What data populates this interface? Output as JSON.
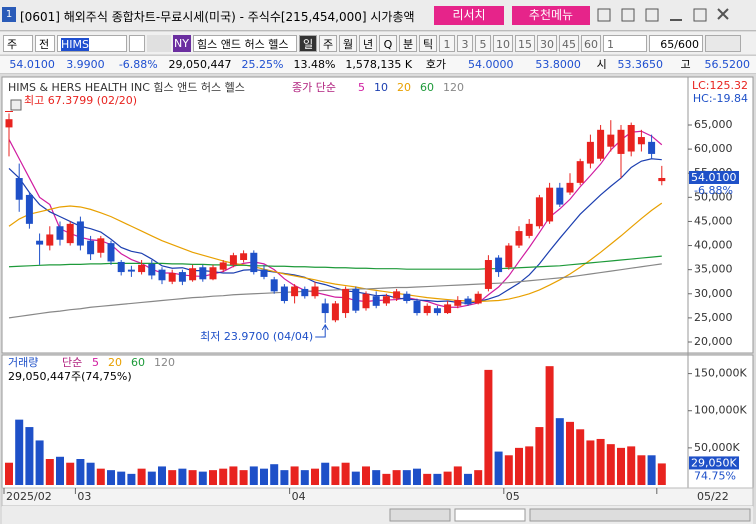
{
  "window": {
    "id": "1",
    "title": "[0601] 해외주식 종합차트-무료시세(미국) - 주식수[215,454,000] 시가총액",
    "buttons": [
      "리서치",
      "추천메뉴"
    ]
  },
  "toolbar": {
    "market": "주",
    "scope": "전",
    "code": "HIMS",
    "exchange": "NY",
    "name": "힘스 앤드 허스 헬스",
    "periods": [
      "일",
      "주",
      "월",
      "년",
      "Q",
      "분",
      "틱"
    ],
    "minutes": [
      "1",
      "3",
      "5",
      "10",
      "15",
      "30",
      "45",
      "60"
    ],
    "unit": "1",
    "count": "65/600"
  },
  "quote": [
    {
      "text": "54.0100",
      "color": "#1f4fd0"
    },
    {
      "text": "3.9900",
      "color": "#1f4fd0"
    },
    {
      "text": "-6.88%",
      "color": "#1f4fd0"
    },
    {
      "text": "29,050,447",
      "color": "#000"
    },
    {
      "text": "25.25%",
      "color": "#1f4fd0"
    },
    {
      "text": "13.48%",
      "color": "#000"
    },
    {
      "text": "1,578,135 K",
      "color": "#000"
    },
    {
      "text": "호가",
      "color": "#000"
    },
    {
      "text": "54.0000",
      "color": "#1f4fd0"
    },
    {
      "text": "53.8000",
      "color": "#1f4fd0"
    },
    {
      "text": "시",
      "color": "#000"
    },
    {
      "text": "53.3650",
      "color": "#1f4fd0"
    },
    {
      "text": "고",
      "color": "#000"
    },
    {
      "text": "56.5200",
      "color": "#1f4fd0"
    }
  ],
  "chart_data": [
    {
      "type": "candlestick",
      "title": "HIMS & HERS HEALTH INC  힘스 앤드 허스 헬스",
      "legend_title": "종가 단순",
      "up_color": "#e8231f",
      "down_color": "#1e50c8",
      "high_label": "최고 67.3799 (02/20)",
      "high_index": 0,
      "low_label": "최저 23.9700 (04/04)",
      "low_index": 31,
      "lc_label": "LC:125.32",
      "hc_label": "HC:-19.84",
      "last_label": "54.0100",
      "last_change": "-6.88%",
      "ylim": [
        18.34,
        74.33
      ],
      "yticks": [
        {
          "value": 20,
          "label": "20,000"
        },
        {
          "value": 25,
          "label": "25,000"
        },
        {
          "value": 30,
          "label": "30,000"
        },
        {
          "value": 35,
          "label": "35,000"
        },
        {
          "value": 40,
          "label": "40,000"
        },
        {
          "value": 45,
          "label": "45,000"
        },
        {
          "value": 50,
          "label": "50,000"
        },
        {
          "value": 55,
          "label": "55,000"
        },
        {
          "value": 60,
          "label": "60,000"
        },
        {
          "value": 65,
          "label": "65,000"
        }
      ],
      "open": [
        64.5,
        54,
        50.5,
        41,
        40,
        44,
        40.5,
        45,
        41,
        38.5,
        40.5,
        36.6,
        35,
        34.5,
        36.2,
        35,
        32.5,
        34.5,
        32.8,
        35.5,
        33,
        35,
        36,
        37,
        38.5,
        35,
        33,
        31.5,
        29.5,
        31,
        29.5,
        28,
        24.5,
        26,
        31,
        27,
        29.5,
        28,
        29,
        30,
        28.5,
        26,
        27,
        26,
        27.5,
        29,
        28,
        31,
        37.5,
        35.5,
        40,
        42,
        44,
        45,
        52,
        51,
        53,
        57,
        58,
        60.5,
        59,
        59.5,
        61,
        61.5,
        53.365
      ],
      "high": [
        67.3799,
        57,
        51,
        42.5,
        44,
        45,
        45,
        46,
        42,
        42,
        41,
        37,
        35.8,
        37,
        37,
        35.5,
        35,
        35,
        36,
        36,
        36,
        37,
        38.5,
        39,
        39,
        36,
        33.5,
        32,
        32,
        31.5,
        32.5,
        29,
        28.5,
        31.5,
        31.5,
        30.5,
        30.5,
        30,
        31,
        30.5,
        29,
        28,
        27.5,
        28.5,
        29.5,
        29.5,
        30.5,
        38,
        38,
        40.5,
        44,
        45.5,
        50.5,
        53,
        53,
        55,
        58,
        63,
        65,
        66,
        65,
        65.5,
        64,
        63,
        56.52
      ],
      "low": [
        58.5,
        47,
        43.5,
        36,
        39,
        40,
        40,
        39,
        37,
        37.5,
        36,
        33.8,
        33.5,
        34,
        33,
        32,
        32,
        31.8,
        32.5,
        32.5,
        32.8,
        34.5,
        35.5,
        36.5,
        34,
        33,
        30,
        28,
        28,
        29,
        29,
        23.97,
        24.1,
        25,
        26,
        26.5,
        27,
        27.5,
        28.5,
        28,
        25.5,
        25.5,
        25.5,
        25.8,
        27,
        27.5,
        27.8,
        30.5,
        33.5,
        35,
        39.5,
        41.5,
        43.5,
        44.5,
        48,
        50.5,
        52.5,
        56,
        57.5,
        59.5,
        54,
        58.5,
        59.5,
        58,
        52.5
      ],
      "close": [
        66.2,
        49.5,
        44.5,
        40.2,
        42.3,
        41.2,
        44.5,
        40,
        38.2,
        41.5,
        36.7,
        34.5,
        34.6,
        36,
        33.8,
        32.8,
        34.3,
        32.5,
        35.3,
        33,
        35.5,
        36.5,
        38,
        38.4,
        34.5,
        33.5,
        30.5,
        28.5,
        31.5,
        29.5,
        31.5,
        26,
        28,
        31,
        26.5,
        30,
        27.5,
        29.5,
        30.5,
        28.5,
        26,
        27.5,
        26,
        27.8,
        28.7,
        27.8,
        30,
        37,
        34.5,
        40,
        43,
        44.5,
        50,
        52,
        48.5,
        53,
        57.5,
        61.5,
        64,
        63,
        64,
        65,
        62.5,
        59,
        54.01
      ],
      "series": [
        {
          "name": "5",
          "color": "#d01ca0",
          "values": [
            62,
            58,
            54,
            50,
            48.5,
            43.5,
            42.5,
            41.7,
            41.2,
            41,
            40.2,
            38.3,
            37.1,
            36.3,
            35.1,
            34.3,
            34.3,
            33.9,
            33.7,
            33.6,
            34.1,
            34.6,
            35.7,
            36.3,
            36.6,
            36.2,
            35,
            33.1,
            31.7,
            30.7,
            30.3,
            29.8,
            29.3,
            29.2,
            28.6,
            28.4,
            28.6,
            28.7,
            28.8,
            29.2,
            28.8,
            28.4,
            27.7,
            27.2,
            27.2,
            27.6,
            28.1,
            29.8,
            31.4,
            33.7,
            36.7,
            39.6,
            42.7,
            45.9,
            47.6,
            49.6,
            52.2,
            54.5,
            56.9,
            59.8,
            61.9,
            63.5,
            63.7,
            62.7,
            60.9
          ]
        },
        {
          "name": "10",
          "color": "#1c3fb0",
          "values": [
            56,
            54,
            51,
            48.5,
            47,
            46,
            45,
            44,
            43.5,
            42.8,
            41.3,
            39.6,
            38.8,
            38.4,
            37.2,
            35.8,
            35.3,
            35.4,
            34.8,
            34.8,
            34.6,
            34.3,
            34.3,
            34.9,
            35,
            34.8,
            34.5,
            34.2,
            33.9,
            33.4,
            32.4,
            31.9,
            31.2,
            30.6,
            30.4,
            30,
            29.6,
            29.7,
            29.1,
            28.9,
            28.7,
            28.6,
            28.4,
            28.5,
            28.2,
            28,
            28.4,
            28.9,
            29.6,
            30.9,
            32.2,
            33.9,
            36.2,
            38.9,
            41.5,
            44,
            46.5,
            48.5,
            50.5,
            52.3,
            54,
            56.2,
            57.5,
            58,
            57.8
          ]
        },
        {
          "name": "20",
          "color": "#e8a000",
          "values": [
            44,
            45.5,
            46.5,
            47,
            47.5,
            48,
            48.2,
            48,
            47.5,
            46.8,
            46,
            45,
            44,
            43,
            42,
            41,
            40.2,
            39.4,
            38.6,
            38,
            37.4,
            36.8,
            36.3,
            36,
            35.6,
            35.1,
            34.6,
            34.1,
            33.7,
            33.3,
            32.9,
            32.4,
            32,
            31.7,
            31.4,
            31,
            30.7,
            30.4,
            30.1,
            29.8,
            29.5,
            29.2,
            29,
            28.8,
            28.6,
            28.5,
            28.4,
            28.5,
            28.6,
            28.9,
            29.4,
            30,
            30.8,
            31.8,
            32.9,
            34.1,
            35.5,
            37,
            38.6,
            40.3,
            42,
            43.8,
            45.6,
            47.3,
            48.8
          ]
        },
        {
          "name": "60",
          "color": "#1e9a3a",
          "values": [
            35.6,
            35.7,
            35.8,
            35.9,
            36,
            36,
            36.1,
            36.1,
            36.2,
            36.2,
            36.3,
            36.3,
            36.3,
            36.3,
            36.3,
            36.3,
            36.2,
            36.2,
            36.1,
            36.1,
            36,
            36,
            35.9,
            35.9,
            35.8,
            35.8,
            35.7,
            35.7,
            35.6,
            35.6,
            35.5,
            35.5,
            35.4,
            35.4,
            35.3,
            35.3,
            35.2,
            35.2,
            35.2,
            35.1,
            35.1,
            35.1,
            35.1,
            35.1,
            35.1,
            35.1,
            35.1,
            35.2,
            35.2,
            35.3,
            35.4,
            35.5,
            35.6,
            35.7,
            35.8,
            36,
            36.2,
            36.4,
            36.6,
            36.8,
            37,
            37.2,
            37.4,
            37.6,
            37.8
          ]
        },
        {
          "name": "120",
          "color": "#888888",
          "values": [
            25,
            25.3,
            25.6,
            25.9,
            26.2,
            26.4,
            26.7,
            26.9,
            27.2,
            27.4,
            27.6,
            27.8,
            28,
            28.2,
            28.4,
            28.6,
            28.8,
            29,
            29.2,
            29.3,
            29.5,
            29.6,
            29.8,
            29.9,
            30,
            30.1,
            30.2,
            30.3,
            30.4,
            30.5,
            30.6,
            30.7,
            30.8,
            30.9,
            31,
            31,
            31.1,
            31.2,
            31.3,
            31.3,
            31.4,
            31.5,
            31.6,
            31.7,
            31.8,
            31.9,
            32,
            32.1,
            32.2,
            32.3,
            32.5,
            32.7,
            32.9,
            33.1,
            33.3,
            33.5,
            33.8,
            34.1,
            34.4,
            34.7,
            35,
            35.3,
            35.6,
            35.9,
            36.2
          ]
        }
      ]
    },
    {
      "type": "bar",
      "title": "거래량",
      "legend_title": "단순",
      "legend": [
        {
          "name": "5",
          "color": "#d01ca0"
        },
        {
          "name": "20",
          "color": "#e8a000"
        },
        {
          "name": "60",
          "color": "#1e9a3a"
        },
        {
          "name": "120",
          "color": "#888888"
        }
      ],
      "subtitle": "29,050,447주(74,75%)",
      "last_label": "29,050K",
      "last_change": "74.75%",
      "ylim": [
        0,
        171000
      ],
      "yticks": [
        {
          "value": 50000,
          "label": "50,000K"
        },
        {
          "value": 100000,
          "label": "100,000K"
        },
        {
          "value": 150000,
          "label": "150,000K"
        }
      ],
      "categories": [
        "2025/02",
        null,
        null,
        null,
        null,
        null,
        null,
        "03",
        null,
        null,
        null,
        null,
        null,
        null,
        null,
        null,
        null,
        null,
        null,
        null,
        null,
        null,
        null,
        null,
        null,
        null,
        null,
        null,
        "04",
        null,
        null,
        null,
        null,
        null,
        null,
        null,
        null,
        null,
        null,
        null,
        null,
        null,
        null,
        null,
        null,
        null,
        null,
        null,
        null,
        "05",
        null,
        null,
        null,
        null,
        null,
        null,
        null,
        null,
        null,
        null,
        null,
        null,
        null,
        null,
        "05/22"
      ],
      "values": [
        30000,
        88000,
        78000,
        60000,
        35000,
        38000,
        30000,
        35000,
        30000,
        22000,
        20000,
        18000,
        15000,
        22000,
        18000,
        25000,
        20000,
        22000,
        20000,
        18000,
        20000,
        22000,
        25000,
        20000,
        25000,
        22000,
        28000,
        20000,
        25000,
        20000,
        22000,
        30000,
        25000,
        30000,
        18000,
        25000,
        20000,
        15000,
        20000,
        20000,
        22000,
        15000,
        15000,
        18000,
        25000,
        15000,
        20000,
        155000,
        45000,
        40000,
        50000,
        52000,
        78000,
        160000,
        90000,
        85000,
        75000,
        60000,
        62000,
        55000,
        50000,
        52000,
        40000,
        40000,
        29050
      ]
    }
  ]
}
